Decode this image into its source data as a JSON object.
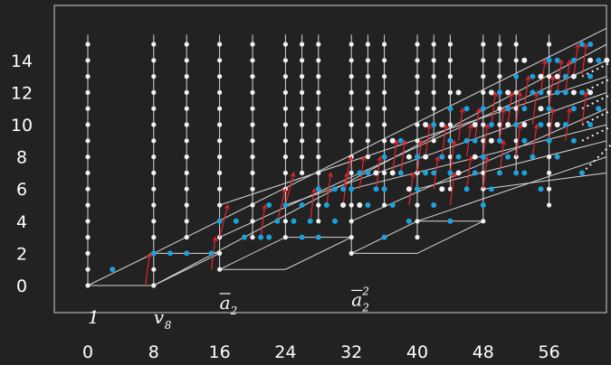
{
  "chart_data": {
    "type": "scatter",
    "title": "",
    "xlabel": "",
    "ylabel": "",
    "xlim": [
      -1.5,
      64
    ],
    "ylim": [
      -1,
      16.2
    ],
    "x_ticks": [
      "0",
      "8",
      "16",
      "24",
      "32",
      "40",
      "48",
      "56"
    ],
    "y_ticks": [
      "0",
      "2",
      "4",
      "6",
      "8",
      "10",
      "12",
      "14"
    ],
    "grid": false,
    "colors": {
      "background": "#222222",
      "frame": "#cfcfcf",
      "white_dots": "#f2f2f2",
      "blue_dots": "#1aa3e0",
      "red_arrows": "#e8242a",
      "lines": "#d8d8d8"
    },
    "annotations": [
      {
        "label": "1",
        "x": 0,
        "y": -0.9
      },
      {
        "label": "v",
        "sub": "8",
        "x": 8,
        "y": -0.9
      },
      {
        "label": "a",
        "sub": "2",
        "overline": true,
        "x": 16,
        "y": 0
      },
      {
        "label": "a",
        "sup": "2",
        "sub": "2",
        "overline": true,
        "x": 32,
        "y": 0.2
      }
    ],
    "columns": [
      {
        "x": 0,
        "y_from": 0,
        "y_to": 15
      },
      {
        "x": 8,
        "y_from": 0,
        "y_to": 15
      },
      {
        "x": 12,
        "y_from": 3,
        "y_to": 15
      },
      {
        "x": 16,
        "y_from": 1,
        "y_to": 15
      },
      {
        "x": 20,
        "y_from": 3,
        "y_to": 15
      },
      {
        "x": 24,
        "y_from": 3,
        "y_to": 15
      },
      {
        "x": 26,
        "y_from": 7,
        "y_to": 15
      },
      {
        "x": 28,
        "y_from": 4,
        "y_to": 15
      },
      {
        "x": 32,
        "y_from": 2,
        "y_to": 15
      },
      {
        "x": 34,
        "y_from": 8,
        "y_to": 15
      },
      {
        "x": 36,
        "y_from": 5,
        "y_to": 15
      },
      {
        "x": 40,
        "y_from": 3,
        "y_to": 15
      },
      {
        "x": 42,
        "y_from": 9,
        "y_to": 15
      },
      {
        "x": 44,
        "y_from": 6,
        "y_to": 15
      },
      {
        "x": 48,
        "y_from": 4,
        "y_to": 15
      },
      {
        "x": 50,
        "y_from": 9,
        "y_to": 15
      },
      {
        "x": 52,
        "y_from": 7,
        "y_to": 15
      },
      {
        "x": 56,
        "y_from": 5,
        "y_to": 15
      }
    ],
    "boxes": [
      {
        "x0": 0,
        "y0": 0,
        "x1": 8,
        "y1": 0,
        "depth_x": 8,
        "depth_y": 2
      },
      {
        "x0": 16,
        "y0": 1,
        "x1": 24,
        "y1": 1,
        "depth_x": 8,
        "depth_y": 2
      },
      {
        "x0": 32,
        "y0": 2,
        "x1": 40,
        "y1": 2,
        "depth_x": 8,
        "depth_y": 2
      }
    ],
    "diagonals": [
      {
        "x0": 8,
        "y0": 0,
        "x1": 63,
        "y1": 15
      },
      {
        "x0": 8,
        "y0": 2,
        "x1": 63,
        "y1": 16
      },
      {
        "x0": 16,
        "y0": 3,
        "x1": 63,
        "y1": 14
      },
      {
        "x0": 16,
        "y0": 5,
        "x1": 63,
        "y1": 13
      },
      {
        "x0": 24,
        "y0": 5,
        "x1": 63,
        "y1": 12
      },
      {
        "x0": 32,
        "y0": 4,
        "x1": 63,
        "y1": 11
      },
      {
        "x0": 32,
        "y0": 6,
        "x1": 63,
        "y1": 10
      },
      {
        "x0": 40,
        "y0": 6,
        "x1": 63,
        "y1": 9
      },
      {
        "x0": 48,
        "y0": 6,
        "x1": 63,
        "y1": 7
      },
      {
        "x0": 40,
        "y0": 4,
        "x1": 63,
        "y1": 8
      }
    ],
    "series": [
      {
        "name": "",
        "color": "#1aa3e0",
        "points": [
          [
            3,
            1
          ],
          [
            8,
            2
          ],
          [
            10,
            2
          ],
          [
            12,
            2
          ],
          [
            15,
            2
          ],
          [
            16,
            4
          ],
          [
            18,
            4
          ],
          [
            19,
            3
          ],
          [
            21,
            3
          ],
          [
            22,
            5
          ],
          [
            23,
            4
          ],
          [
            24,
            5
          ],
          [
            25,
            4
          ],
          [
            26,
            5
          ],
          [
            27,
            4
          ],
          [
            28,
            6
          ],
          [
            29,
            5
          ],
          [
            30,
            4
          ],
          [
            31,
            6
          ],
          [
            32,
            6
          ],
          [
            33,
            7
          ],
          [
            34,
            7
          ],
          [
            35,
            6
          ],
          [
            36,
            6
          ],
          [
            37,
            5
          ],
          [
            38,
            7
          ],
          [
            39,
            4
          ],
          [
            40,
            6
          ],
          [
            40,
            8
          ],
          [
            41,
            7
          ],
          [
            42,
            5
          ],
          [
            43,
            8
          ],
          [
            44,
            4
          ],
          [
            44,
            7
          ],
          [
            45,
            8
          ],
          [
            46,
            6
          ],
          [
            47,
            7
          ],
          [
            47,
            9
          ],
          [
            48,
            5
          ],
          [
            48,
            8
          ],
          [
            49,
            6
          ],
          [
            49,
            10
          ],
          [
            50,
            7
          ],
          [
            50,
            9
          ],
          [
            51,
            8
          ],
          [
            52,
            7
          ],
          [
            52,
            10
          ],
          [
            53,
            9
          ],
          [
            53,
            11
          ],
          [
            54,
            8
          ],
          [
            54,
            12
          ],
          [
            55,
            10
          ],
          [
            55,
            6
          ],
          [
            56,
            9
          ],
          [
            56,
            11
          ],
          [
            57,
            12
          ],
          [
            57,
            8
          ],
          [
            58,
            10
          ],
          [
            58,
            13
          ],
          [
            59,
            11
          ],
          [
            59,
            14
          ],
          [
            60,
            12
          ],
          [
            60,
            7
          ],
          [
            61,
            13
          ],
          [
            61,
            10
          ],
          [
            62,
            11
          ],
          [
            62,
            14
          ],
          [
            36,
            8
          ],
          [
            38,
            9
          ],
          [
            42,
            10
          ],
          [
            44,
            9
          ],
          [
            46,
            11
          ],
          [
            50,
            12
          ],
          [
            52,
            13
          ],
          [
            54,
            13
          ],
          [
            56,
            14
          ],
          [
            58,
            12
          ],
          [
            34,
            5
          ],
          [
            30,
            6
          ],
          [
            26,
            3
          ],
          [
            22,
            3
          ],
          [
            28,
            3
          ],
          [
            36,
            3
          ],
          [
            42,
            7
          ],
          [
            44,
            11
          ],
          [
            46,
            9
          ],
          [
            48,
            11
          ],
          [
            51,
            11
          ],
          [
            53,
            7
          ],
          [
            55,
            12
          ],
          [
            57,
            14
          ],
          [
            59,
            9
          ],
          [
            60,
            15
          ],
          [
            61,
            15
          ]
        ]
      },
      {
        "name": "",
        "color": "#f2f2f2",
        "points": [
          [
            31,
            5
          ],
          [
            33,
            5
          ],
          [
            35,
            7
          ],
          [
            37,
            7
          ],
          [
            39,
            6
          ],
          [
            41,
            8
          ],
          [
            43,
            6
          ],
          [
            45,
            7
          ],
          [
            47,
            8
          ],
          [
            49,
            9
          ],
          [
            51,
            10
          ],
          [
            53,
            10
          ],
          [
            55,
            11
          ],
          [
            57,
            10
          ],
          [
            59,
            12
          ],
          [
            61,
            12
          ],
          [
            39,
            8
          ],
          [
            43,
            10
          ],
          [
            47,
            10
          ],
          [
            51,
            12
          ],
          [
            55,
            13
          ],
          [
            59,
            13
          ],
          [
            63,
            14
          ],
          [
            45,
            12
          ],
          [
            49,
            12
          ],
          [
            53,
            14
          ],
          [
            57,
            13
          ],
          [
            61,
            14
          ],
          [
            37,
            9
          ],
          [
            41,
            10
          ]
        ]
      }
    ],
    "arrows": [
      [
        7,
        0,
        7.5,
        2
      ],
      [
        15,
        1,
        15.5,
        3
      ],
      [
        16,
        3,
        17,
        5
      ],
      [
        21,
        3,
        21.5,
        5
      ],
      [
        23,
        4,
        24,
        6
      ],
      [
        24,
        5,
        25,
        7
      ],
      [
        27,
        4,
        27.5,
        6
      ],
      [
        29,
        5,
        29.5,
        7
      ],
      [
        31,
        5,
        31.5,
        7
      ],
      [
        31,
        6,
        32,
        8
      ],
      [
        33,
        6,
        33.5,
        8
      ],
      [
        35,
        6,
        35.5,
        8
      ],
      [
        37,
        7,
        37.5,
        9
      ],
      [
        38,
        7,
        38.5,
        9
      ],
      [
        39,
        5,
        39.5,
        7
      ],
      [
        40,
        7,
        40.5,
        9
      ],
      [
        41,
        8,
        41.5,
        10
      ],
      [
        42,
        6,
        42.5,
        8
      ],
      [
        43,
        8,
        43.5,
        10
      ],
      [
        44,
        7,
        44.5,
        9
      ],
      [
        45,
        9,
        45.5,
        11
      ],
      [
        46,
        8,
        46.5,
        10
      ],
      [
        47,
        9,
        47.5,
        11
      ],
      [
        48,
        8,
        48.5,
        10
      ],
      [
        49,
        10,
        49.5,
        12
      ],
      [
        50,
        9,
        50.5,
        11
      ],
      [
        51,
        10,
        51.5,
        12
      ],
      [
        52,
        10,
        52.5,
        12
      ],
      [
        53,
        11,
        53.5,
        13
      ],
      [
        54,
        10,
        54.5,
        12
      ],
      [
        55,
        12,
        55.5,
        14
      ],
      [
        56,
        11,
        56.5,
        13
      ],
      [
        57,
        12,
        57.5,
        14
      ],
      [
        58,
        12,
        58.5,
        14
      ],
      [
        59,
        13,
        59.5,
        15
      ],
      [
        60,
        13,
        60.5,
        15
      ],
      [
        46,
        6,
        46.5,
        8
      ],
      [
        50,
        7,
        50.5,
        9
      ],
      [
        54,
        8,
        54.5,
        10
      ],
      [
        58,
        9,
        58.5,
        11
      ],
      [
        44,
        5,
        44.5,
        7
      ],
      [
        48,
        6,
        48.5,
        8
      ],
      [
        52,
        8,
        52.5,
        10
      ],
      [
        56,
        9,
        56.5,
        11
      ],
      [
        60,
        10,
        60.5,
        12
      ]
    ],
    "dotted_tails": [
      [
        60,
        7,
        64,
        9
      ],
      [
        60,
        9,
        64,
        10
      ],
      [
        60,
        10,
        64,
        11
      ],
      [
        60,
        11,
        64,
        12
      ],
      [
        60,
        12,
        64,
        13
      ],
      [
        60,
        13,
        64,
        14
      ]
    ]
  }
}
